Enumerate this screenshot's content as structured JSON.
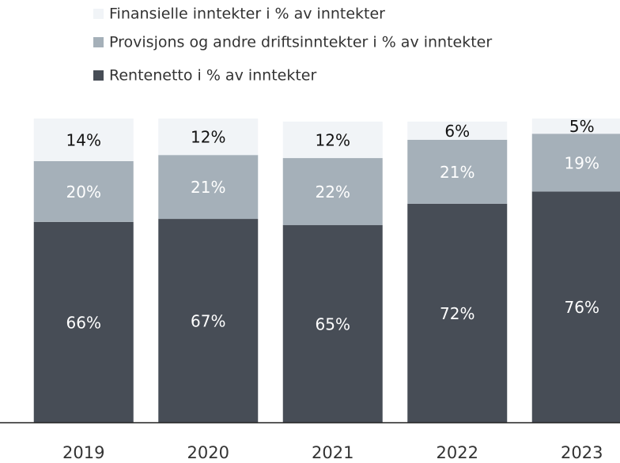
{
  "chart_data": {
    "type": "stacked_bar",
    "categories": [
      "2019",
      "2020",
      "2021",
      "2022",
      "2023"
    ],
    "series": [
      {
        "name": "Rentenetto i % av inntekter",
        "color": "#474d56",
        "label_color": "#ffffff",
        "values": [
          66,
          67,
          65,
          72,
          76
        ],
        "value_labels": [
          "66%",
          "67%",
          "65%",
          "72%",
          "76%"
        ]
      },
      {
        "name": "Provisjons og andre driftsinntekter i % av inntekter",
        "color": "#a5b0b9",
        "label_color": "#ffffff",
        "values": [
          20,
          21,
          22,
          21,
          19
        ],
        "value_labels": [
          "20%",
          "21%",
          "22%",
          "21%",
          "19%"
        ]
      },
      {
        "name": "Finansielle inntekter i % av inntekter",
        "color": "#f1f4f7",
        "label_color": "#111111",
        "values": [
          14,
          12,
          12,
          6,
          5
        ],
        "value_labels": [
          "14%",
          "12%",
          "12%",
          "6%",
          "5%"
        ]
      }
    ],
    "ylim": [
      0,
      100
    ]
  }
}
